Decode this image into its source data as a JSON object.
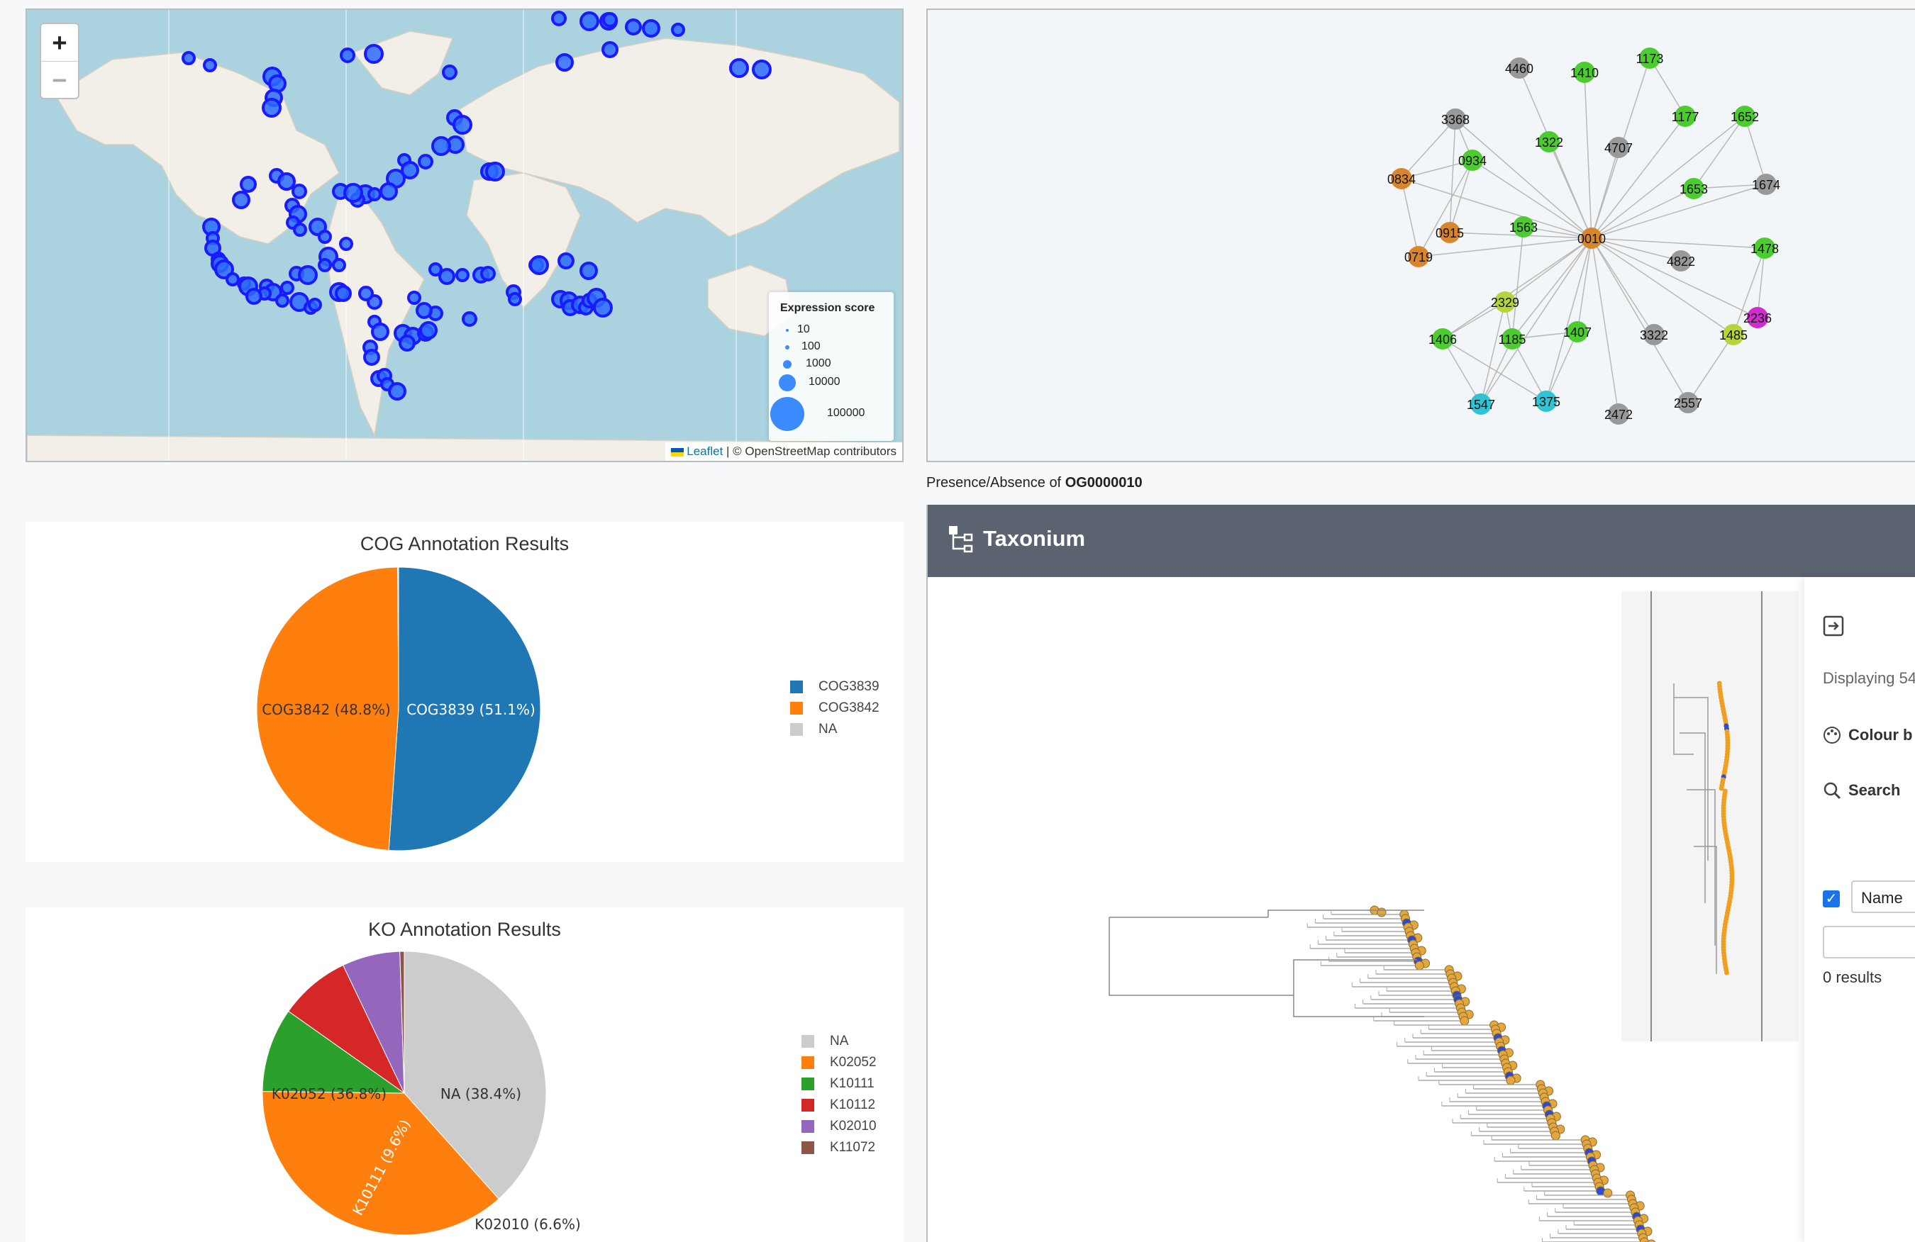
{
  "map": {
    "zoom_in": "+",
    "zoom_out": "−",
    "legend_title": "Expression score",
    "legend_items": [
      {
        "label": "10",
        "r": 2
      },
      {
        "label": "100",
        "r": 3
      },
      {
        "label": "1000",
        "r": 6
      },
      {
        "label": "10000",
        "r": 12
      },
      {
        "label": "100000",
        "r": 24
      }
    ],
    "attribution_leaflet": "Leaflet",
    "attribution_rest": "| © OpenStreetMap contributors",
    "marker_color": "#1a1aff"
  },
  "network": {
    "center": "0010",
    "nodes": [
      {
        "id": "4460",
        "color": "#999999"
      },
      {
        "id": "1410",
        "color": "#4ccd2f"
      },
      {
        "id": "1173",
        "color": "#4ccd2f"
      },
      {
        "id": "3368",
        "color": "#999999"
      },
      {
        "id": "1322",
        "color": "#4ccd2f"
      },
      {
        "id": "1177",
        "color": "#4ccd2f"
      },
      {
        "id": "1652",
        "color": "#4ccd2f"
      },
      {
        "id": "4707",
        "color": "#999999"
      },
      {
        "id": "0934",
        "color": "#4ccd2f"
      },
      {
        "id": "0834",
        "color": "#d9862b"
      },
      {
        "id": "1653",
        "color": "#4ccd2f"
      },
      {
        "id": "1674",
        "color": "#999999"
      },
      {
        "id": "0915",
        "color": "#d9862b"
      },
      {
        "id": "1563",
        "color": "#4ccd2f"
      },
      {
        "id": "0010",
        "color": "#d9862b"
      },
      {
        "id": "0719",
        "color": "#d9862b"
      },
      {
        "id": "1478",
        "color": "#4ccd2f"
      },
      {
        "id": "4822",
        "color": "#999999"
      },
      {
        "id": "2329",
        "color": "#b5d63a"
      },
      {
        "id": "2236",
        "color": "#d12ccf"
      },
      {
        "id": "1406",
        "color": "#4ccd2f"
      },
      {
        "id": "1185",
        "color": "#4ccd2f"
      },
      {
        "id": "1407",
        "color": "#4ccd2f"
      },
      {
        "id": "3322",
        "color": "#999999"
      },
      {
        "id": "1485",
        "color": "#b5d63a"
      },
      {
        "id": "1547",
        "color": "#2ec4d4"
      },
      {
        "id": "1375",
        "color": "#2ec4d4"
      },
      {
        "id": "2557",
        "color": "#999999"
      },
      {
        "id": "2472",
        "color": "#999999"
      }
    ]
  },
  "presence_label": "Presence/Absence of",
  "presence_og": "OG0000010",
  "cog": {
    "title": "COG Annotation Results",
    "legend": [
      {
        "name": "COG3839",
        "color": "#1f77b4"
      },
      {
        "name": "COG3842",
        "color": "#ff7f0e"
      },
      {
        "name": "NA",
        "color": "#cccccc"
      }
    ],
    "labels": [
      "COG3839 (51.1%)",
      "COG3842 (48.8%)"
    ]
  },
  "ko": {
    "title": "KO Annotation Results",
    "legend": [
      {
        "name": "NA",
        "color": "#cccccc"
      },
      {
        "name": "K02052",
        "color": "#ff7f0e"
      },
      {
        "name": "K10111",
        "color": "#2ca02c"
      },
      {
        "name": "K10112",
        "color": "#d62728"
      },
      {
        "name": "K02010",
        "color": "#9467bd"
      },
      {
        "name": "K11072",
        "color": "#8c564b"
      }
    ],
    "labels": [
      "NA (38.4%)",
      "K02052 (36.8%)",
      "K10111 (9.6%)",
      "K02010 (6.6%)"
    ]
  },
  "chart_data": [
    {
      "type": "pie",
      "title": "COG Annotation Results",
      "categories": [
        "COG3839",
        "COG3842",
        "NA"
      ],
      "values": [
        51.1,
        48.8,
        0.1
      ]
    },
    {
      "type": "pie",
      "title": "KO Annotation Results",
      "categories": [
        "NA",
        "K02052",
        "K10111",
        "K10112",
        "K02010",
        "K11072"
      ],
      "values": [
        38.4,
        36.8,
        9.6,
        8.1,
        6.6,
        0.5
      ]
    }
  ],
  "taxonium": {
    "title": "Taxonium",
    "displaying": "Displaying 54",
    "colour_by": "Colour b",
    "search": "Search",
    "name_field": "Name",
    "results": "0 results"
  }
}
